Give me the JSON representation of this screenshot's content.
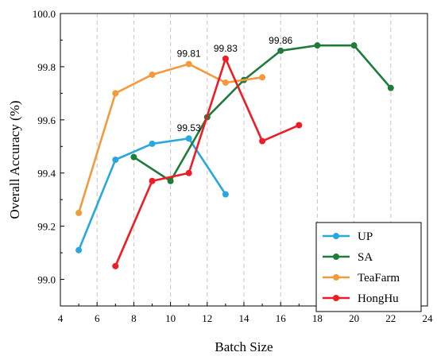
{
  "chart_data": {
    "type": "line",
    "title": "",
    "xlabel": "Batch Size",
    "ylabel": "Overall Accuracy (%)",
    "xlim": [
      4,
      24
    ],
    "ylim": [
      98.9,
      100.0
    ],
    "xticks": [
      "4",
      "6",
      "8",
      "10",
      "12",
      "14",
      "16",
      "18",
      "20",
      "22",
      "24"
    ],
    "yticks": [
      "99.0",
      "99.2",
      "99.4",
      "99.6",
      "99.8",
      "100.0"
    ],
    "grid": "vertical dashed",
    "legend_position": "bottom-right",
    "series": [
      {
        "name": "UP",
        "color": "#29a8e0",
        "points": [
          [
            5,
            99.11
          ],
          [
            7,
            99.45
          ],
          [
            9,
            99.51
          ],
          [
            11,
            99.53
          ],
          [
            13,
            99.32
          ]
        ]
      },
      {
        "name": "SA",
        "color": "#1e7b3a",
        "points": [
          [
            8,
            99.46
          ],
          [
            10,
            99.37
          ],
          [
            12,
            99.61
          ],
          [
            14,
            99.75
          ],
          [
            16,
            99.86
          ],
          [
            18,
            99.88
          ],
          [
            20,
            99.88
          ],
          [
            22,
            99.72
          ]
        ]
      },
      {
        "name": "TeaFarm",
        "color": "#f39a3c",
        "points": [
          [
            5,
            99.25
          ],
          [
            7,
            99.7
          ],
          [
            9,
            99.77
          ],
          [
            11,
            99.81
          ],
          [
            13,
            99.74
          ],
          [
            15,
            99.76
          ]
        ]
      },
      {
        "name": "HongHu",
        "color": "#ee1c25",
        "points": [
          [
            7,
            99.05
          ],
          [
            9,
            99.37
          ],
          [
            11,
            99.4
          ],
          [
            13,
            99.83
          ],
          [
            15,
            99.52
          ],
          [
            17,
            99.58
          ]
        ]
      }
    ],
    "annotations": [
      {
        "text": "99.53",
        "x": 11,
        "y": 99.53
      },
      {
        "text": "99.81",
        "x": 11,
        "y": 99.81
      },
      {
        "text": "99.83",
        "x": 13,
        "y": 99.83
      },
      {
        "text": "99.86",
        "x": 16,
        "y": 99.86
      }
    ]
  }
}
